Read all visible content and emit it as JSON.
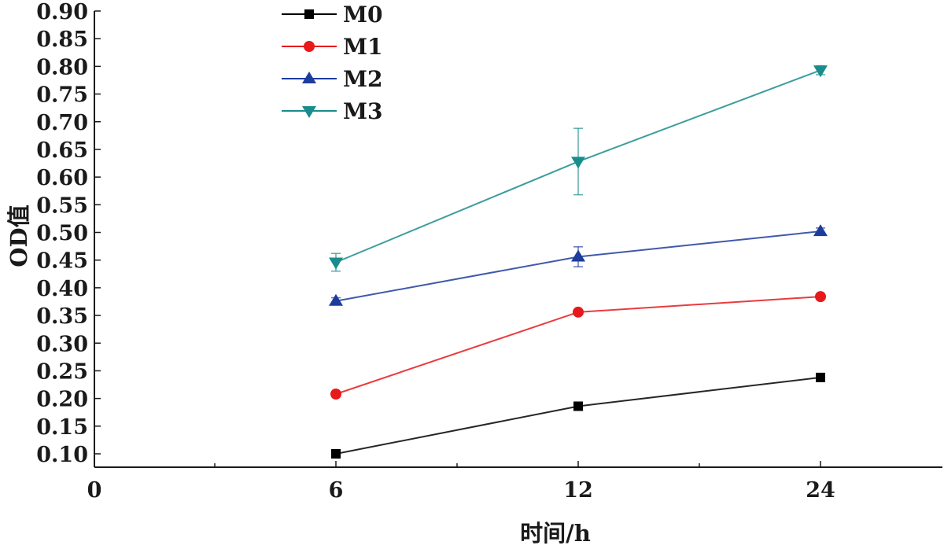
{
  "chart_data": {
    "type": "line",
    "title": "",
    "xlabel": "时间/h",
    "ylabel": "OD值",
    "x_ticks": [
      "0",
      "6",
      "12",
      "24"
    ],
    "categories": [
      "6",
      "12",
      "24"
    ],
    "ylim": [
      0.1,
      0.9
    ],
    "yticks": [
      "0.10",
      "0.15",
      "0.20",
      "0.25",
      "0.30",
      "0.35",
      "0.40",
      "0.45",
      "0.50",
      "0.55",
      "0.60",
      "0.65",
      "0.70",
      "0.75",
      "0.80",
      "0.85",
      "0.90"
    ],
    "grid": false,
    "legend": "top-left",
    "series": [
      {
        "name": "M0",
        "color": "#000000",
        "marker": "square",
        "values": [
          0.1,
          0.186,
          0.238
        ],
        "errors": [
          0.004,
          0.004,
          0.004
        ]
      },
      {
        "name": "M1",
        "color": "#e8191b",
        "marker": "circle",
        "values": [
          0.208,
          0.356,
          0.384
        ],
        "errors": [
          0.004,
          0.004,
          0.004
        ]
      },
      {
        "name": "M2",
        "color": "#1e3c9c",
        "marker": "triangle-up",
        "values": [
          0.376,
          0.456,
          0.502
        ],
        "errors": [
          0.006,
          0.018,
          0.006
        ]
      },
      {
        "name": "M3",
        "color": "#1a8c8c",
        "marker": "triangle-down",
        "values": [
          0.446,
          0.628,
          0.793
        ],
        "errors": [
          0.016,
          0.06,
          0.008
        ]
      }
    ]
  }
}
